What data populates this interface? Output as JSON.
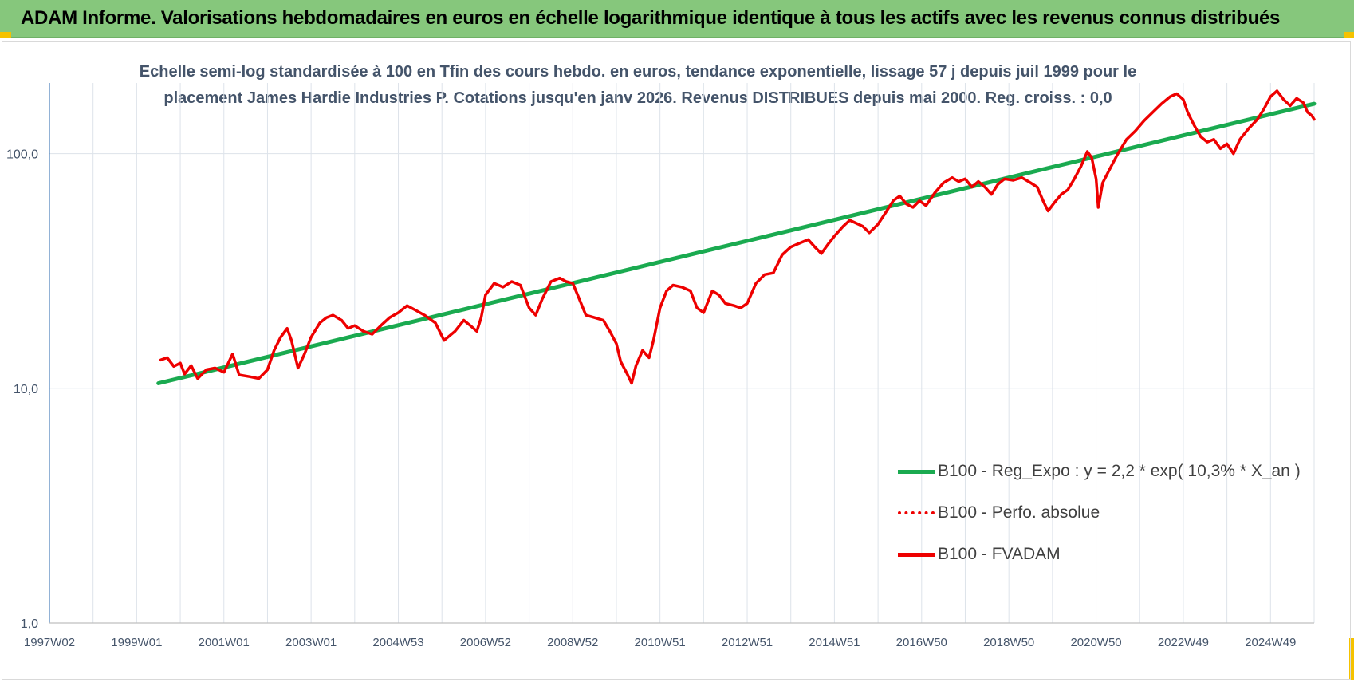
{
  "banner": {
    "title": "ADAM Informe. Valorisations hebdomadaires en euros en échelle logarithmique identique à tous les actifs avec les revenus connus distribués"
  },
  "colors": {
    "banner_bg": "#86c77c",
    "accent_corner": "#f5c200",
    "trend_line": "#1aaa50",
    "fvadam_line": "#ee0000",
    "perfo_line": "#ee0000",
    "grid": "#dde3ea",
    "axis_text": "#44546a"
  },
  "chart_data": {
    "type": "line",
    "title_lines": [
      "Echelle semi-log standardisée à 100 en Tfin des cours hebdo. en euros, tendance exponentielle, lissage 57 j depuis juil 1999 pour le",
      "placement James  Hardie Industries P. Cotations jusqu'en janv 2026. Revenus DISTRIBUES  depuis mai 2000. Reg. croiss. : 0,0"
    ],
    "y_scale": "log",
    "ylim": [
      1,
      200
    ],
    "y_ticks": [
      {
        "value": 1,
        "label": "1,0"
      },
      {
        "value": 10,
        "label": "10,0"
      },
      {
        "value": 100,
        "label": "100,0"
      }
    ],
    "xlim": [
      1997.0,
      2026.0
    ],
    "x_ticks": [
      {
        "value": 1997.0,
        "label": "1997W02"
      },
      {
        "value": 1999.0,
        "label": "1999W01"
      },
      {
        "value": 2001.0,
        "label": "2001W01"
      },
      {
        "value": 2003.0,
        "label": "2003W01"
      },
      {
        "value": 2005.0,
        "label": "2004W53"
      },
      {
        "value": 2007.0,
        "label": "2006W52"
      },
      {
        "value": 2009.0,
        "label": "2008W52"
      },
      {
        "value": 2011.0,
        "label": "2010W51"
      },
      {
        "value": 2013.0,
        "label": "2012W51"
      },
      {
        "value": 2015.0,
        "label": "2014W51"
      },
      {
        "value": 2017.0,
        "label": "2016W50"
      },
      {
        "value": 2019.0,
        "label": "2018W50"
      },
      {
        "value": 2021.0,
        "label": "2020W50"
      },
      {
        "value": 2023.0,
        "label": "2022W49"
      },
      {
        "value": 2025.0,
        "label": "2024W49"
      }
    ],
    "grid": true,
    "legend_position": "right",
    "series": [
      {
        "name": "B100 - Reg_Expo : y = 2,2 * exp( 10,3% *  X_an )",
        "style": "solid-thick",
        "color": "#1aaa50",
        "points": [
          [
            1999.5,
            10.5
          ],
          [
            2026.0,
            163
          ]
        ]
      },
      {
        "name": "B100 - Perfo. absolue",
        "style": "dotted",
        "color": "#ee0000",
        "points": []
      },
      {
        "name": "B100 - FVADAM",
        "style": "solid-thick",
        "color": "#ee0000",
        "points": [
          [
            1999.55,
            13.2
          ],
          [
            1999.7,
            13.5
          ],
          [
            1999.85,
            12.4
          ],
          [
            2000.0,
            12.8
          ],
          [
            2000.1,
            11.5
          ],
          [
            2000.25,
            12.5
          ],
          [
            2000.4,
            11.0
          ],
          [
            2000.6,
            12.0
          ],
          [
            2000.8,
            12.2
          ],
          [
            2001.0,
            11.7
          ],
          [
            2001.2,
            14.0
          ],
          [
            2001.35,
            11.4
          ],
          [
            2001.6,
            11.2
          ],
          [
            2001.8,
            11.0
          ],
          [
            2002.0,
            12.0
          ],
          [
            2002.15,
            14.5
          ],
          [
            2002.3,
            16.5
          ],
          [
            2002.45,
            18.0
          ],
          [
            2002.55,
            16.0
          ],
          [
            2002.7,
            12.2
          ],
          [
            2002.85,
            14.0
          ],
          [
            2003.0,
            16.5
          ],
          [
            2003.2,
            19.0
          ],
          [
            2003.35,
            20.0
          ],
          [
            2003.5,
            20.5
          ],
          [
            2003.7,
            19.5
          ],
          [
            2003.85,
            18.0
          ],
          [
            2004.0,
            18.5
          ],
          [
            2004.2,
            17.5
          ],
          [
            2004.4,
            17.0
          ],
          [
            2004.6,
            18.5
          ],
          [
            2004.8,
            20.0
          ],
          [
            2005.0,
            21.0
          ],
          [
            2005.2,
            22.5
          ],
          [
            2005.4,
            21.5
          ],
          [
            2005.6,
            20.5
          ],
          [
            2005.85,
            19.0
          ],
          [
            2006.05,
            16.0
          ],
          [
            2006.3,
            17.5
          ],
          [
            2006.5,
            19.5
          ],
          [
            2006.65,
            18.5
          ],
          [
            2006.8,
            17.5
          ],
          [
            2006.9,
            20.0
          ],
          [
            2007.0,
            25.0
          ],
          [
            2007.2,
            28.0
          ],
          [
            2007.4,
            27.0
          ],
          [
            2007.6,
            28.5
          ],
          [
            2007.8,
            27.5
          ],
          [
            2008.0,
            22.0
          ],
          [
            2008.15,
            20.5
          ],
          [
            2008.3,
            24.0
          ],
          [
            2008.5,
            28.5
          ],
          [
            2008.7,
            29.5
          ],
          [
            2008.85,
            28.5
          ],
          [
            2009.0,
            28.0
          ],
          [
            2009.15,
            24.0
          ],
          [
            2009.3,
            20.5
          ],
          [
            2009.5,
            20.0
          ],
          [
            2009.7,
            19.5
          ],
          [
            2009.85,
            17.5
          ],
          [
            2010.0,
            15.5
          ],
          [
            2010.1,
            13.0
          ],
          [
            2010.25,
            11.5
          ],
          [
            2010.35,
            10.5
          ],
          [
            2010.45,
            12.5
          ],
          [
            2010.6,
            14.5
          ],
          [
            2010.75,
            13.5
          ],
          [
            2010.85,
            16.0
          ],
          [
            2011.0,
            22.0
          ],
          [
            2011.15,
            26.0
          ],
          [
            2011.3,
            27.5
          ],
          [
            2011.5,
            27.0
          ],
          [
            2011.7,
            26.0
          ],
          [
            2011.85,
            22.0
          ],
          [
            2012.0,
            21.0
          ],
          [
            2012.2,
            26.0
          ],
          [
            2012.35,
            25.0
          ],
          [
            2012.5,
            23.0
          ],
          [
            2012.7,
            22.5
          ],
          [
            2012.85,
            22.0
          ],
          [
            2013.0,
            23.0
          ],
          [
            2013.2,
            28.0
          ],
          [
            2013.4,
            30.5
          ],
          [
            2013.6,
            31.0
          ],
          [
            2013.8,
            37.0
          ],
          [
            2014.0,
            40.0
          ],
          [
            2014.2,
            41.5
          ],
          [
            2014.4,
            43.0
          ],
          [
            2014.55,
            40.0
          ],
          [
            2014.7,
            37.5
          ],
          [
            2014.85,
            41.0
          ],
          [
            2015.0,
            44.5
          ],
          [
            2015.2,
            49.0
          ],
          [
            2015.35,
            52.0
          ],
          [
            2015.5,
            50.5
          ],
          [
            2015.65,
            49.0
          ],
          [
            2015.8,
            46.0
          ],
          [
            2016.0,
            50.0
          ],
          [
            2016.2,
            57.0
          ],
          [
            2016.35,
            63.0
          ],
          [
            2016.5,
            66.0
          ],
          [
            2016.65,
            61.0
          ],
          [
            2016.8,
            59.0
          ],
          [
            2016.95,
            63.0
          ],
          [
            2017.1,
            60.0
          ],
          [
            2017.3,
            68.0
          ],
          [
            2017.5,
            75.0
          ],
          [
            2017.7,
            79.0
          ],
          [
            2017.85,
            76.0
          ],
          [
            2018.0,
            78.0
          ],
          [
            2018.15,
            72.0
          ],
          [
            2018.3,
            76.0
          ],
          [
            2018.45,
            72.0
          ],
          [
            2018.6,
            67.0
          ],
          [
            2018.75,
            74.0
          ],
          [
            2018.9,
            78.0
          ],
          [
            2019.1,
            77.0
          ],
          [
            2019.3,
            79.0
          ],
          [
            2019.5,
            75.0
          ],
          [
            2019.65,
            72.0
          ],
          [
            2019.8,
            62.0
          ],
          [
            2019.9,
            57.0
          ],
          [
            2020.05,
            62.0
          ],
          [
            2020.2,
            67.0
          ],
          [
            2020.35,
            70.0
          ],
          [
            2020.5,
            78.0
          ],
          [
            2020.65,
            88.0
          ],
          [
            2020.8,
            102.0
          ],
          [
            2020.9,
            96.0
          ],
          [
            2021.0,
            78.0
          ],
          [
            2021.05,
            59.0
          ],
          [
            2021.15,
            75.0
          ],
          [
            2021.3,
            85.0
          ],
          [
            2021.5,
            100.0
          ],
          [
            2021.7,
            115.0
          ],
          [
            2021.9,
            125.0
          ],
          [
            2022.1,
            138.0
          ],
          [
            2022.3,
            150.0
          ],
          [
            2022.5,
            163.0
          ],
          [
            2022.7,
            175.0
          ],
          [
            2022.85,
            180.0
          ],
          [
            2023.0,
            170.0
          ],
          [
            2023.1,
            150.0
          ],
          [
            2023.25,
            132.0
          ],
          [
            2023.4,
            118.0
          ],
          [
            2023.55,
            112.0
          ],
          [
            2023.7,
            115.0
          ],
          [
            2023.85,
            105.0
          ],
          [
            2024.0,
            110.0
          ],
          [
            2024.15,
            100.0
          ],
          [
            2024.3,
            115.0
          ],
          [
            2024.5,
            128.0
          ],
          [
            2024.7,
            140.0
          ],
          [
            2024.85,
            155.0
          ],
          [
            2025.0,
            175.0
          ],
          [
            2025.15,
            185.0
          ],
          [
            2025.3,
            170.0
          ],
          [
            2025.45,
            160.0
          ],
          [
            2025.6,
            172.0
          ],
          [
            2025.75,
            165.0
          ],
          [
            2025.85,
            150.0
          ],
          [
            2025.95,
            145.0
          ],
          [
            2026.0,
            140.0
          ]
        ]
      }
    ]
  }
}
